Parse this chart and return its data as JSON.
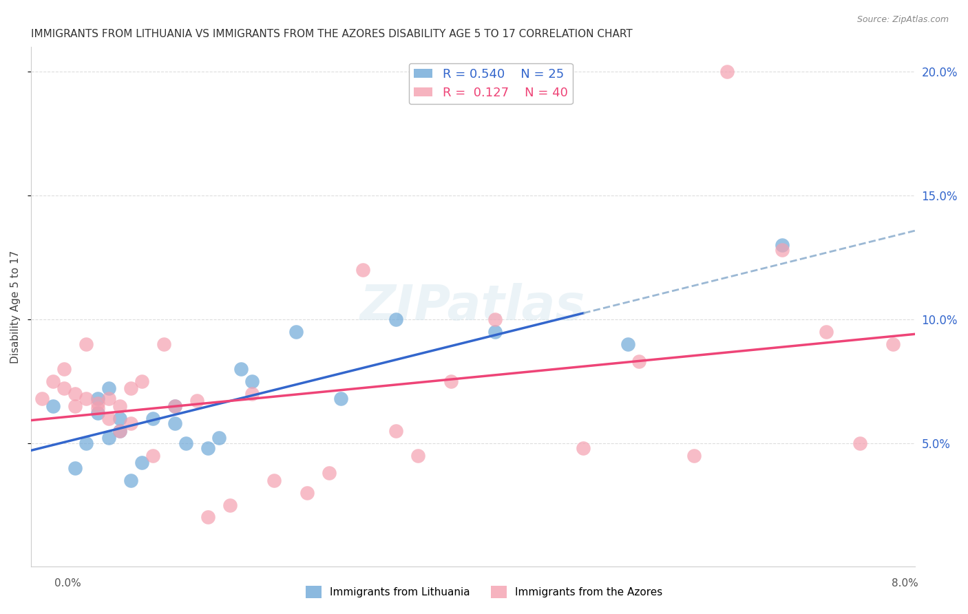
{
  "title": "IMMIGRANTS FROM LITHUANIA VS IMMIGRANTS FROM THE AZORES DISABILITY AGE 5 TO 17 CORRELATION CHART",
  "source": "Source: ZipAtlas.com",
  "ylabel": "Disability Age 5 to 17",
  "legend_label1": "Immigrants from Lithuania",
  "legend_label2": "Immigrants from the Azores",
  "r1": 0.54,
  "n1": 25,
  "r2": 0.127,
  "n2": 40,
  "color_blue": "#6EA8D8",
  "color_pink": "#F4A0B0",
  "color_blue_line": "#3366CC",
  "color_pink_line": "#EE4477",
  "color_blue_dashed": "#9BB8D4",
  "watermark": "ZIPatlas",
  "y_ticks_right_labels": [
    "5.0%",
    "10.0%",
    "15.0%",
    "20.0%"
  ],
  "xlim": [
    0.0,
    0.08
  ],
  "ylim": [
    0.0,
    0.21
  ],
  "blue_x": [
    0.002,
    0.004,
    0.005,
    0.006,
    0.006,
    0.007,
    0.007,
    0.008,
    0.008,
    0.009,
    0.01,
    0.011,
    0.013,
    0.013,
    0.014,
    0.016,
    0.017,
    0.019,
    0.02,
    0.024,
    0.028,
    0.033,
    0.042,
    0.054,
    0.068
  ],
  "blue_y": [
    0.065,
    0.04,
    0.05,
    0.068,
    0.062,
    0.052,
    0.072,
    0.06,
    0.055,
    0.035,
    0.042,
    0.06,
    0.058,
    0.065,
    0.05,
    0.048,
    0.052,
    0.08,
    0.075,
    0.095,
    0.068,
    0.1,
    0.095,
    0.09,
    0.13
  ],
  "pink_x": [
    0.001,
    0.002,
    0.003,
    0.003,
    0.004,
    0.004,
    0.005,
    0.005,
    0.006,
    0.006,
    0.007,
    0.007,
    0.008,
    0.008,
    0.009,
    0.009,
    0.01,
    0.011,
    0.012,
    0.013,
    0.015,
    0.016,
    0.018,
    0.02,
    0.022,
    0.025,
    0.027,
    0.03,
    0.033,
    0.035,
    0.038,
    0.042,
    0.05,
    0.055,
    0.06,
    0.063,
    0.068,
    0.072,
    0.075,
    0.078
  ],
  "pink_y": [
    0.068,
    0.075,
    0.072,
    0.08,
    0.065,
    0.07,
    0.068,
    0.09,
    0.064,
    0.066,
    0.06,
    0.068,
    0.065,
    0.055,
    0.072,
    0.058,
    0.075,
    0.045,
    0.09,
    0.065,
    0.067,
    0.02,
    0.025,
    0.07,
    0.035,
    0.03,
    0.038,
    0.12,
    0.055,
    0.045,
    0.075,
    0.1,
    0.048,
    0.083,
    0.045,
    0.2,
    0.128,
    0.095,
    0.05,
    0.09
  ]
}
